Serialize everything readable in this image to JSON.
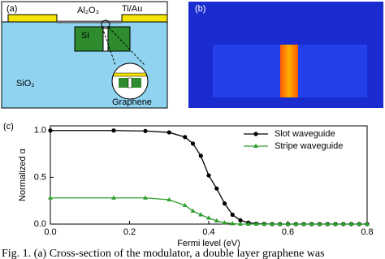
{
  "panel_a": {
    "label": "(a)",
    "al2o3": "Al₂O₃",
    "tiau": "Ti/Au",
    "si": "Si",
    "sio2": "SiO₂",
    "graphene": "Graphene"
  },
  "panel_b": {
    "label": "(b)"
  },
  "chart_data": {
    "type": "line",
    "panel_label": "(c)",
    "x_label": "Fermi level (eV)",
    "y_label": "Normalized α",
    "x": [
      0,
      0.16,
      0.24,
      0.3,
      0.34,
      0.36,
      0.38,
      0.4,
      0.42,
      0.44,
      0.46,
      0.48,
      0.5,
      0.52,
      0.54,
      0.56,
      0.58,
      0.6,
      0.62,
      0.64,
      0.66,
      0.68,
      0.7,
      0.72,
      0.74,
      0.76,
      0.78,
      0.8
    ],
    "series": [
      {
        "name": "Slot waveguide",
        "color": "#000000",
        "marker": "circle",
        "values": [
          1.0,
          1.0,
          0.995,
          0.98,
          0.93,
          0.86,
          0.73,
          0.52,
          0.38,
          0.22,
          0.1,
          0.04,
          0.015,
          0.005,
          0.002,
          0,
          0,
          0,
          0,
          0,
          0,
          0,
          0,
          0,
          0,
          0,
          0,
          0
        ]
      },
      {
        "name": "Stripe waveguide",
        "color": "#2e9e2e",
        "marker": "triangle",
        "values": [
          0.28,
          0.28,
          0.28,
          0.26,
          0.2,
          0.14,
          0.1,
          0.065,
          0.035,
          0.015,
          0.005,
          0,
          0,
          0,
          0,
          0,
          0,
          0,
          0,
          0,
          0,
          0,
          0,
          0,
          0,
          0,
          0,
          0
        ]
      }
    ],
    "xlim": [
      0,
      0.8
    ],
    "ylim": [
      0,
      1.05
    ],
    "xticks": [
      {
        "value": 0,
        "label": "0.0"
      },
      0.2,
      0.4,
      0.6,
      0.8
    ],
    "yticks": [
      {
        "value": 0,
        "label": "0.0"
      },
      0.5,
      {
        "value": 1,
        "label": "1.0"
      }
    ],
    "legend": "upper right"
  },
  "caption": "Fig. 1. (a) Cross-section of the modulator, a double layer graphene was"
}
